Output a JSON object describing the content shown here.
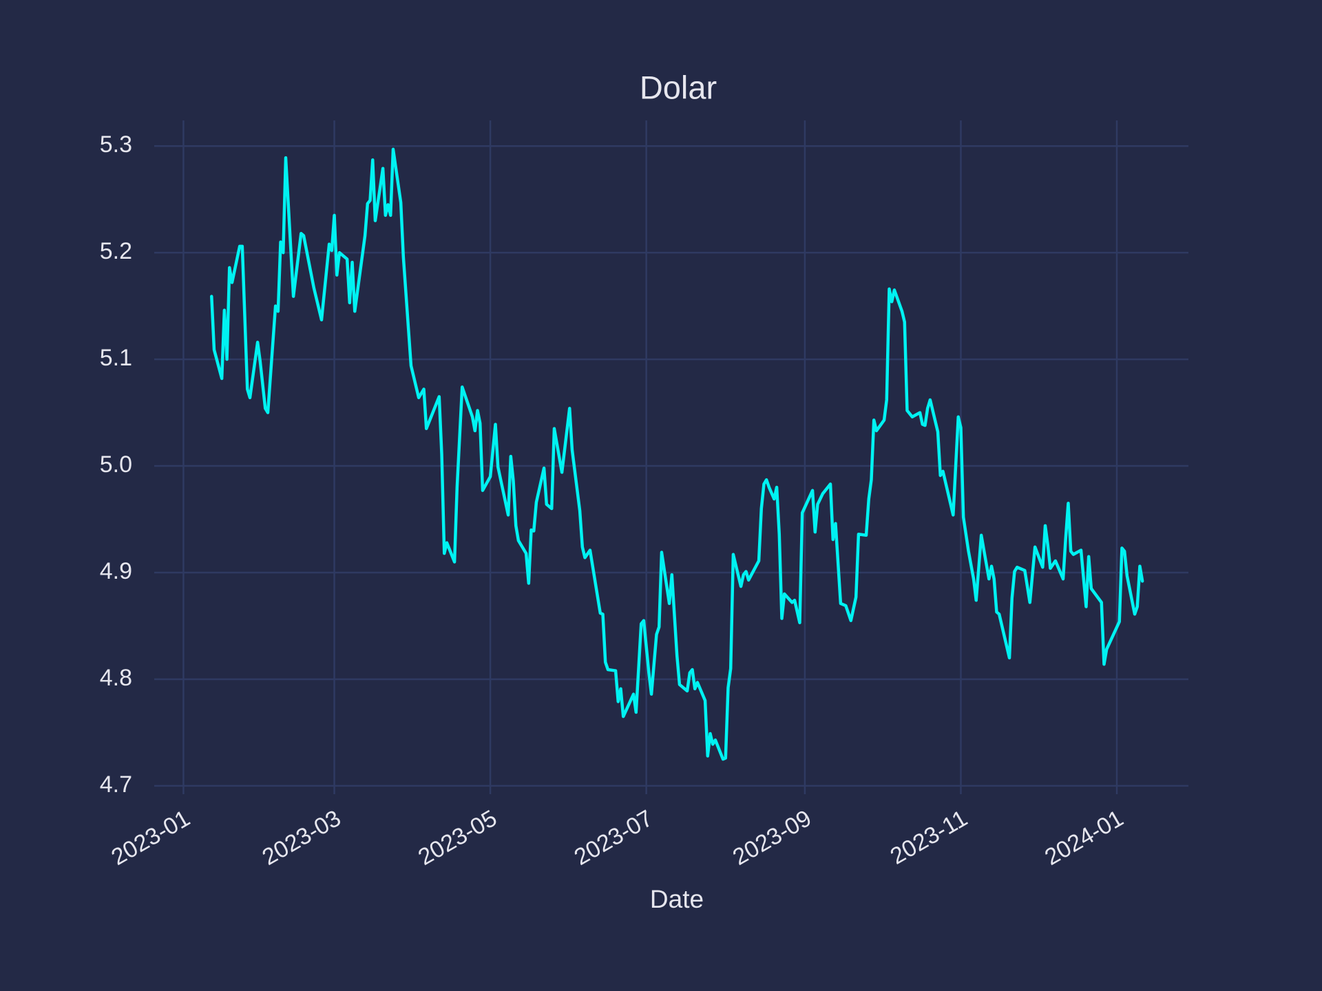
{
  "chart_data": {
    "type": "line",
    "title": "Dolar",
    "xlabel": "Date",
    "color": "#00f2f2",
    "grid": true,
    "xlim": [
      -9,
      393
    ],
    "ylim": [
      4.698,
      5.324
    ],
    "xticks": [
      {
        "value": 0,
        "label": "2023-01"
      },
      {
        "value": 59,
        "label": "2023-03"
      },
      {
        "value": 120,
        "label": "2023-05"
      },
      {
        "value": 181,
        "label": "2023-07"
      },
      {
        "value": 243,
        "label": "2023-09"
      },
      {
        "value": 304,
        "label": "2023-11"
      },
      {
        "value": 365,
        "label": "2024-01"
      }
    ],
    "yticks": [
      4.7,
      4.8,
      4.9,
      {
        "value": 5,
        "label": "5.0"
      },
      5.1,
      5.2,
      5.3
    ],
    "x": [
      11,
      12,
      15,
      16,
      17,
      18,
      19,
      22,
      23,
      25,
      26,
      29,
      30,
      32,
      33,
      36,
      37,
      38,
      39,
      40,
      43,
      46,
      47,
      51,
      54,
      57,
      58,
      59,
      60,
      61,
      64,
      65,
      66,
      67,
      71,
      72,
      73,
      74,
      75,
      78,
      79,
      80,
      81,
      82,
      85,
      86,
      89,
      92,
      94,
      95,
      100,
      101,
      102,
      103,
      106,
      107,
      109,
      113,
      114,
      115,
      116,
      117,
      120,
      122,
      123,
      127,
      128,
      129,
      130,
      131,
      134,
      135,
      136,
      137,
      138,
      141,
      142,
      144,
      145,
      148,
      151,
      152,
      155,
      156,
      157,
      159,
      163,
      164,
      165,
      166,
      169,
      170,
      171,
      172,
      176,
      177,
      179,
      180,
      182,
      183,
      185,
      186,
      187,
      190,
      191,
      193,
      194,
      197,
      198,
      199,
      200,
      201,
      204,
      205,
      206,
      207,
      208,
      211,
      212,
      213,
      214,
      215,
      218,
      219,
      220,
      221,
      225,
      226,
      227,
      228,
      229,
      231,
      232,
      233,
      234,
      235,
      238,
      239,
      241,
      242,
      246,
      247,
      248,
      250,
      253,
      254,
      255,
      257,
      259,
      261,
      263,
      264,
      267,
      268,
      269,
      270,
      271,
      274,
      275,
      276,
      277,
      278,
      281,
      282,
      283,
      285,
      288,
      289,
      290,
      291,
      292,
      295,
      296,
      297,
      301,
      303,
      304,
      305,
      307,
      309,
      310,
      312,
      315,
      316,
      317,
      318,
      319,
      323,
      324,
      325,
      326,
      329,
      331,
      333,
      336,
      337,
      338,
      339,
      341,
      344,
      345,
      346,
      347,
      348,
      351,
      353,
      354,
      355,
      359,
      360,
      361,
      366,
      367,
      368,
      369,
      372,
      373,
      374,
      375
    ],
    "values": [
      5.159,
      5.109,
      5.082,
      5.146,
      5.1,
      5.186,
      5.172,
      5.206,
      5.206,
      5.072,
      5.064,
      5.116,
      5.098,
      5.054,
      5.05,
      5.15,
      5.145,
      5.21,
      5.2,
      5.289,
      5.159,
      5.218,
      5.216,
      5.167,
      5.137,
      5.208,
      5.202,
      5.235,
      5.179,
      5.2,
      5.194,
      5.153,
      5.191,
      5.145,
      5.216,
      5.246,
      5.249,
      5.287,
      5.23,
      5.279,
      5.235,
      5.245,
      5.235,
      5.297,
      5.247,
      5.196,
      5.094,
      5.064,
      5.072,
      5.035,
      5.065,
      5.011,
      4.918,
      4.928,
      4.91,
      4.98,
      5.074,
      5.046,
      5.033,
      5.052,
      5.04,
      4.977,
      4.99,
      5.039,
      4.999,
      4.954,
      5.009,
      4.986,
      4.944,
      4.93,
      4.918,
      4.89,
      4.94,
      4.939,
      4.966,
      4.998,
      4.964,
      4.96,
      5.035,
      4.994,
      5.054,
      5.015,
      4.958,
      4.924,
      4.914,
      4.921,
      4.862,
      4.861,
      4.816,
      4.809,
      4.808,
      4.779,
      4.791,
      4.765,
      4.786,
      4.769,
      4.852,
      4.855,
      4.806,
      4.786,
      4.842,
      4.849,
      4.919,
      4.871,
      4.898,
      4.822,
      4.795,
      4.789,
      4.806,
      4.809,
      4.791,
      4.797,
      4.78,
      4.728,
      4.749,
      4.739,
      4.743,
      4.725,
      4.726,
      4.792,
      4.81,
      4.917,
      4.887,
      4.898,
      4.901,
      4.893,
      4.911,
      4.96,
      4.983,
      4.987,
      4.98,
      4.969,
      4.98,
      4.936,
      4.857,
      4.88,
      4.872,
      4.874,
      4.853,
      4.956,
      4.977,
      4.938,
      4.964,
      4.974,
      4.983,
      4.931,
      4.946,
      4.871,
      4.869,
      4.855,
      4.877,
      4.936,
      4.935,
      4.969,
      4.987,
      5.043,
      5.033,
      5.043,
      5.062,
      5.166,
      5.154,
      5.165,
      5.145,
      5.135,
      5.052,
      5.046,
      5.05,
      5.039,
      5.038,
      5.054,
      5.062,
      5.032,
      4.991,
      4.995,
      4.954,
      5.046,
      5.036,
      4.952,
      4.92,
      4.894,
      4.874,
      4.935,
      4.894,
      4.906,
      4.894,
      4.863,
      4.861,
      4.82,
      4.876,
      4.901,
      4.905,
      4.902,
      4.872,
      4.924,
      4.905,
      4.944,
      4.926,
      4.904,
      4.911,
      4.894,
      4.932,
      4.965,
      4.92,
      4.917,
      4.921,
      4.868,
      4.915,
      4.885,
      4.872,
      4.814,
      4.828,
      4.854,
      4.923,
      4.92,
      4.897,
      4.861,
      4.868,
      4.906,
      4.892
    ]
  }
}
